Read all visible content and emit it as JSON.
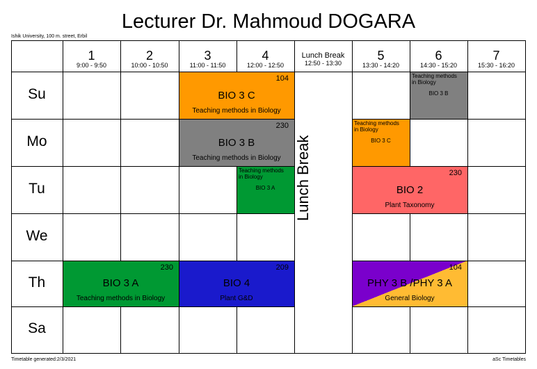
{
  "header": {
    "title": "Lecturer Dr. Mahmoud DOGARA",
    "school": "Ishik University, 100 m. street, Erbil"
  },
  "footer": {
    "generated": "Timetable generated:2/3/2021",
    "brand": "aSc Timetables"
  },
  "periods": [
    {
      "num": "1",
      "time": "9:00 - 9:50"
    },
    {
      "num": "2",
      "time": "10:00 - 10:50"
    },
    {
      "num": "3",
      "time": "11:00 - 11:50"
    },
    {
      "num": "4",
      "time": "12:00 - 12:50"
    },
    {
      "num": "Lunch Break",
      "time": "12:50 - 13:30"
    },
    {
      "num": "5",
      "time": "13:30 - 14:20"
    },
    {
      "num": "6",
      "time": "14:30 - 15:20"
    },
    {
      "num": "7",
      "time": "15:30 - 16:20"
    }
  ],
  "days": [
    "Su",
    "Mo",
    "Tu",
    "We",
    "Th",
    "Sa"
  ],
  "lunch_label": "Lunch Break",
  "lessons": {
    "su_bio3c": {
      "room": "104",
      "code": "BIO 3 C",
      "subject": "Teaching methods in Biology",
      "color": "#ff9900"
    },
    "mo_bio3b": {
      "room": "230",
      "code": "BIO 3 B",
      "subject": "Teaching methods in Biology",
      "color": "#808080"
    },
    "tu_bio2": {
      "room": "230",
      "code": "BIO 2",
      "subject": "Plant Taxonomy",
      "color": "#ff6666"
    },
    "th_bio3a": {
      "room": "230",
      "code": "BIO 3 A",
      "subject": "Teaching methods in Biology",
      "color": "#009933"
    },
    "th_bio4": {
      "room": "209",
      "code": "BIO 4",
      "subject": "Plant G&D",
      "color": "#1a1acc"
    },
    "th_phy": {
      "room": "104",
      "code": "PHY 3 B /PHY 3 A",
      "subject": "General Biology",
      "color_a": "#7a00cc",
      "color_b": "#ffbb33"
    }
  },
  "small_lessons": {
    "su_p6": {
      "line1": "Teaching methods",
      "line2": "in Biology",
      "code": "BIO 3 B",
      "color": "#808080"
    },
    "mo_p5": {
      "line1": "Teaching methods",
      "line2": "in Biology",
      "code": "BIO 3 C",
      "color": "#ff9900"
    },
    "tu_p4": {
      "line1": "Teaching methods",
      "line2": "in Biology",
      "code": "BIO 3 A",
      "color": "#009933"
    }
  }
}
